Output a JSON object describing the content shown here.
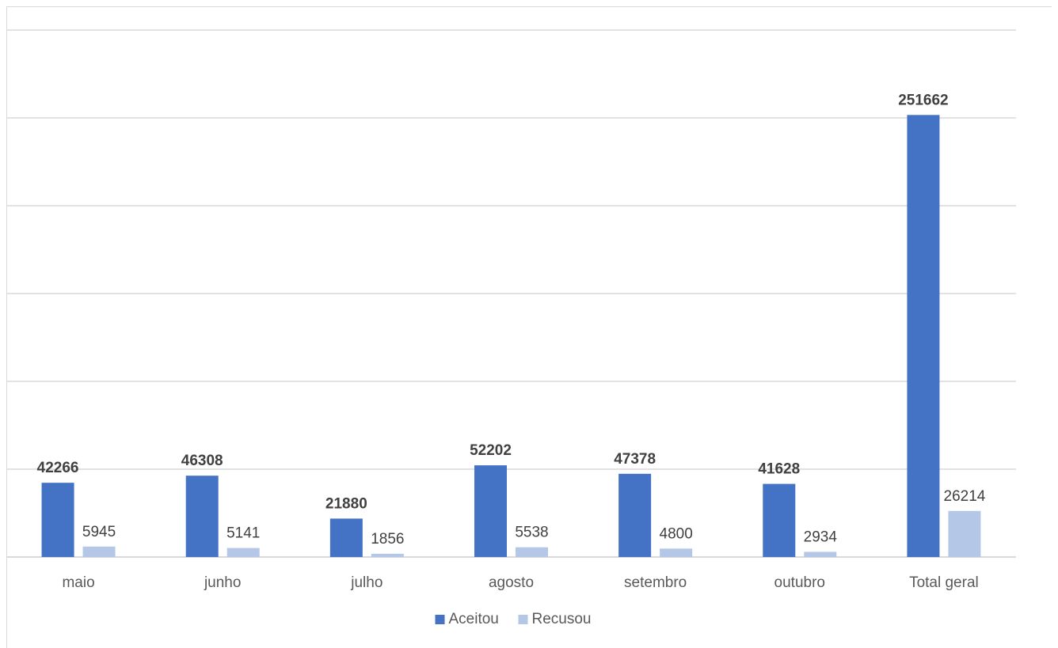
{
  "chart_data": {
    "type": "bar",
    "title": "",
    "xlabel": "",
    "ylabel": "",
    "categories": [
      "maio",
      "junho",
      "julho",
      "agosto",
      "setembro",
      "outubro",
      "Total geral"
    ],
    "series": [
      {
        "name": "Aceitou",
        "values": [
          42266,
          46308,
          21880,
          52202,
          47378,
          41628,
          251662
        ],
        "color": "#4472c4",
        "label_bold": true
      },
      {
        "name": "Recusou",
        "values": [
          5945,
          5141,
          1856,
          5538,
          4800,
          2934,
          26214
        ],
        "color": "#b4c7e7",
        "label_bold": false
      }
    ],
    "ylim": [
      0,
      300000
    ],
    "y_major_step": 50000,
    "y_tick_labels_shown": false,
    "grid": true,
    "legend_position": "bottom"
  }
}
